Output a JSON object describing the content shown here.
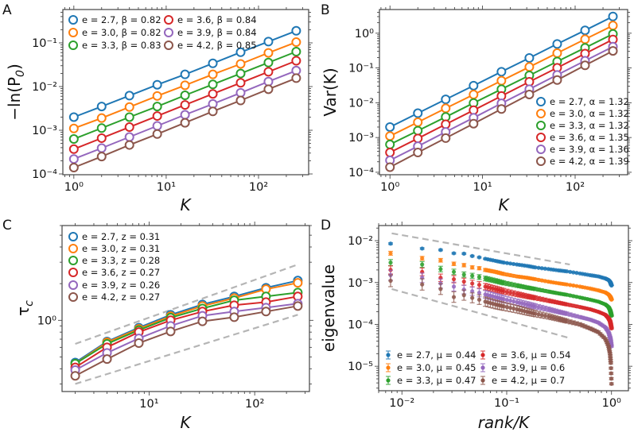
{
  "chart_data": [
    {
      "panel_label": "A",
      "type": "line",
      "scale": {
        "x": "log",
        "y": "log"
      },
      "xlabel": "K",
      "ylabel": {
        "text": "−ln(P",
        "sub": "0",
        "after": ")"
      },
      "xlim": [
        0.76,
        349
      ],
      "ylim": [
        9.6e-05,
        0.58
      ],
      "grid": false,
      "legend_placement": "top-left, 2 columns",
      "xticks": [
        {
          "value": 1,
          "label": "10⁰"
        },
        {
          "value": 10,
          "label": "10¹"
        },
        {
          "value": 100,
          "label": "10²"
        }
      ],
      "yticks": [
        {
          "value": 0.0001,
          "label": "10⁻⁴"
        },
        {
          "value": 0.001,
          "label": "10⁻³"
        },
        {
          "value": 0.01,
          "label": "10⁻²"
        },
        {
          "value": 0.1,
          "label": "10⁻¹"
        }
      ],
      "marker": "open-circle",
      "x": [
        1,
        2,
        4,
        8,
        16,
        32,
        64,
        128,
        256
      ],
      "series": [
        {
          "name": "e = 2.7, β = 0.82",
          "color": "#1f77b4",
          "values": [
            0.002,
            0.0035,
            0.0062,
            0.011,
            0.019,
            0.034,
            0.061,
            0.107,
            0.189
          ]
        },
        {
          "name": "e = 3.0, β = 0.82",
          "color": "#ff7f0e",
          "values": [
            0.0011,
            0.0019,
            0.0034,
            0.0061,
            0.0107,
            0.019,
            0.033,
            0.059,
            0.104
          ]
        },
        {
          "name": "e = 3.3, β = 0.83",
          "color": "#2ca02c",
          "values": [
            0.00063,
            0.00112,
            0.002,
            0.0035,
            0.0063,
            0.0112,
            0.0199,
            0.0354,
            0.063
          ]
        },
        {
          "name": "e = 3.6, β = 0.84",
          "color": "#d62728",
          "values": [
            0.00037,
            0.00066,
            0.00118,
            0.00212,
            0.0038,
            0.0068,
            0.0122,
            0.0218,
            0.039
          ]
        },
        {
          "name": "e = 3.9, β = 0.84",
          "color": "#9467bd",
          "values": [
            0.00022,
            0.00039,
            0.0007,
            0.00126,
            0.00226,
            0.004,
            0.0072,
            0.013,
            0.0232
          ]
        },
        {
          "name": "e = 4.2, β = 0.85",
          "color": "#8c564b",
          "values": [
            0.00014,
            0.00025,
            0.00046,
            0.00082,
            0.00148,
            0.0027,
            0.0048,
            0.0087,
            0.0156
          ]
        }
      ]
    },
    {
      "panel_label": "B",
      "type": "line",
      "scale": {
        "x": "log",
        "y": "log"
      },
      "xlabel": "K",
      "ylabel": {
        "text": "Var(K)"
      },
      "xlim": [
        0.77,
        369
      ],
      "ylim": [
        8.5e-05,
        4.8
      ],
      "grid": false,
      "legend_placement": "lower-right",
      "xticks": [
        {
          "value": 1,
          "label": "10⁰"
        },
        {
          "value": 10,
          "label": "10¹"
        },
        {
          "value": 100,
          "label": "10²"
        }
      ],
      "yticks": [
        {
          "value": 0.0001,
          "label": "10⁻⁴"
        },
        {
          "value": 0.001,
          "label": "10⁻³"
        },
        {
          "value": 0.01,
          "label": "10⁻²"
        },
        {
          "value": 0.1,
          "label": "10⁻¹"
        },
        {
          "value": 1,
          "label": "10⁰"
        }
      ],
      "marker": "open-circle",
      "x": [
        1,
        2,
        4,
        8,
        16,
        32,
        64,
        128,
        256
      ],
      "series": [
        {
          "name": "e = 2.7, α = 1.32",
          "color": "#1f77b4",
          "values": [
            0.002,
            0.005,
            0.0125,
            0.031,
            0.078,
            0.194,
            0.49,
            1.21,
            3.03
          ]
        },
        {
          "name": "e = 3.0, α = 1.32",
          "color": "#ff7f0e",
          "values": [
            0.0011,
            0.00275,
            0.0069,
            0.0172,
            0.043,
            0.107,
            0.267,
            0.67,
            1.66
          ]
        },
        {
          "name": "e = 3.3, α = 1.32",
          "color": "#2ca02c",
          "values": [
            0.00063,
            0.00157,
            0.0039,
            0.0098,
            0.0245,
            0.061,
            0.153,
            0.38,
            0.95
          ]
        },
        {
          "name": "e = 3.6, α = 1.35",
          "color": "#d62728",
          "values": [
            0.00037,
            0.00094,
            0.0024,
            0.0061,
            0.0156,
            0.04,
            0.101,
            0.259,
            0.66
          ]
        },
        {
          "name": "e = 3.9, α = 1.36",
          "color": "#9467bd",
          "values": [
            0.00022,
            0.00056,
            0.00145,
            0.0037,
            0.0096,
            0.0245,
            0.063,
            0.161,
            0.41
          ]
        },
        {
          "name": "e = 4.2, α = 1.39",
          "color": "#8c564b",
          "values": [
            0.00014,
            0.00037,
            0.00096,
            0.0025,
            0.0066,
            0.0173,
            0.045,
            0.119,
            0.31
          ]
        }
      ]
    },
    {
      "panel_label": "C",
      "type": "line",
      "scale": {
        "x": "log",
        "y": "log"
      },
      "xlabel": "K",
      "ylabel": {
        "text": "τ",
        "sub": "c"
      },
      "xlim": [
        1.5,
        330
      ],
      "ylim": [
        0.26,
        6.0
      ],
      "grid": false,
      "legend_placement": "top-left",
      "xticks": [
        {
          "value": 10,
          "label": "10¹"
        },
        {
          "value": 100,
          "label": "10²"
        }
      ],
      "yticks": [
        {
          "value": 1,
          "label": "10⁰"
        }
      ],
      "marker": "open-circle",
      "x": [
        2,
        4,
        8,
        16,
        32,
        64,
        128,
        256
      ],
      "series": [
        {
          "name": "e = 2.7, z = 0.31",
          "color": "#1f77b4",
          "values": [
            0.45,
            0.67,
            0.87,
            1.11,
            1.35,
            1.57,
            1.85,
            2.12
          ]
        },
        {
          "name": "e = 3.0, z = 0.31",
          "color": "#ff7f0e",
          "values": [
            0.44,
            0.66,
            0.85,
            1.08,
            1.31,
            1.52,
            1.8,
            2.03
          ]
        },
        {
          "name": "e = 3.3, z = 0.28",
          "color": "#2ca02c",
          "values": [
            0.44,
            0.64,
            0.83,
            1.05,
            1.25,
            1.46,
            1.57,
            1.69
          ]
        },
        {
          "name": "e = 3.6, z = 0.27",
          "color": "#d62728",
          "values": [
            0.41,
            0.6,
            0.8,
            1.0,
            1.18,
            1.33,
            1.41,
            1.57
          ]
        },
        {
          "name": "e = 3.9, z = 0.26",
          "color": "#9467bd",
          "values": [
            0.39,
            0.54,
            0.71,
            0.9,
            1.09,
            1.18,
            1.27,
            1.37
          ]
        },
        {
          "name": "e = 4.2, z = 0.27",
          "color": "#8c564b",
          "values": [
            0.35,
            0.48,
            0.65,
            0.81,
            0.98,
            1.06,
            1.18,
            1.31
          ]
        }
      ],
      "guides": [
        {
          "style": "dashed",
          "color": "#b5b5b5",
          "x": [
            2,
            256
          ],
          "y": [
            0.64,
            2.87
          ]
        },
        {
          "style": "dashed",
          "color": "#b5b5b5",
          "x": [
            2,
            256
          ],
          "y": [
            0.3,
            1.11
          ]
        }
      ]
    },
    {
      "panel_label": "D",
      "type": "scatter",
      "scale": {
        "x": "log",
        "y": "log"
      },
      "xlabel": "rank/K",
      "ylabel": {
        "text": "eigenvalue"
      },
      "xlim": [
        0.006,
        1.45
      ],
      "ylim": [
        2.6e-06,
        0.023
      ],
      "grid": false,
      "legend_placement": "lower-left, 2 columns",
      "xticks": [
        {
          "value": 0.01,
          "label": "10⁻²"
        },
        {
          "value": 0.1,
          "label": "10⁻¹"
        },
        {
          "value": 1,
          "label": "10⁰"
        }
      ],
      "yticks": [
        {
          "value": 1e-05,
          "label": "10⁻⁵"
        },
        {
          "value": 0.0001,
          "label": "10⁻⁴"
        },
        {
          "value": 0.001,
          "label": "10⁻³"
        },
        {
          "value": 0.01,
          "label": "10⁻²"
        }
      ],
      "marker": "filled-point-with-errorbar",
      "x": [
        0.0078,
        0.0156,
        0.0234,
        0.0313,
        0.0391,
        0.0469,
        0.0547,
        0.0625,
        0.0781,
        0.0938,
        0.125,
        0.1563,
        0.1875,
        0.25,
        0.3125,
        0.375,
        0.5,
        0.625,
        0.75,
        0.875,
        0.9375,
        0.9688,
        0.9844,
        1.0
      ],
      "series": [
        {
          "name": "e = 2.7, μ = 0.44",
          "color": "#1f77b4",
          "values": [
            0.0085,
            0.0065,
            0.006,
            0.005,
            0.0049,
            0.0043,
            0.004,
            0.0037,
            0.0033,
            0.003,
            0.0027,
            0.0025,
            0.0023,
            0.0021,
            0.00195,
            0.00185,
            0.00165,
            0.0015,
            0.0014,
            0.00125,
            0.00115,
            0.00105,
            0.00095,
            0.00085
          ]
        },
        {
          "name": "e = 3.0, μ = 0.45",
          "color": "#ff7f0e",
          "values": [
            0.005,
            0.0038,
            0.0034,
            0.0028,
            0.0026,
            0.0023,
            0.0022,
            0.002,
            0.0018,
            0.0016,
            0.0014,
            0.0013,
            0.0012,
            0.00105,
            0.00096,
            0.0009,
            0.0008,
            0.00072,
            0.00065,
            0.00058,
            0.00052,
            0.00047,
            0.00043,
            0.00039
          ]
        },
        {
          "name": "e = 3.3, μ = 0.47",
          "color": "#2ca02c",
          "values": [
            0.003,
            0.0027,
            0.0021,
            0.0018,
            0.00155,
            0.00145,
            0.00135,
            0.00125,
            0.0011,
            0.00098,
            0.00085,
            0.00076,
            0.0007,
            0.00061,
            0.00055,
            0.00051,
            0.00044,
            0.00039,
            0.00035,
            0.0003,
            0.00026,
            0.00022,
            0.00019,
            0.00016
          ]
        },
        {
          "name": "e = 3.6, μ = 0.54",
          "color": "#d62728",
          "values": [
            0.002,
            0.0018,
            0.0013,
            0.0012,
            0.00105,
            0.00095,
            0.00088,
            0.0008,
            0.0007,
            0.00062,
            0.00053,
            0.00047,
            0.00043,
            0.00037,
            0.00033,
            0.0003,
            0.00026,
            0.00023,
            0.0002,
            0.00017,
            0.00014,
            0.00012,
            0.0001,
            8e-05
          ]
        },
        {
          "name": "e = 3.9, μ = 0.6",
          "color": "#9467bd",
          "values": [
            0.0015,
            0.0013,
            0.00095,
            0.0008,
            0.00068,
            0.00062,
            0.00057,
            0.00052,
            0.00045,
            0.0004,
            0.00034,
            0.0003,
            0.00027,
            0.00023,
            0.0002,
            0.00018,
            0.00015,
            0.00013,
            0.00011,
            8.5e-05,
            6.5e-05,
            5e-05,
            4e-05,
            3e-05
          ]
        },
        {
          "name": "e = 4.2, μ = 0.7",
          "color": "#8c564b",
          "values": [
            0.0011,
            0.0009,
            0.0007,
            0.00045,
            0.0005,
            0.00043,
            0.00039,
            0.00035,
            0.0003,
            0.00027,
            0.00023,
            0.0002,
            0.00018,
            0.000155,
            0.000135,
            0.00012,
            0.0001,
            8e-05,
            6.5e-05,
            4.5e-05,
            3e-05,
            2e-05,
            1.2e-05,
            3.8e-06
          ]
        }
      ],
      "guides": [
        {
          "style": "dashed",
          "color": "#b5b5b5",
          "x": [
            0.008,
            0.4
          ],
          "y": [
            0.015,
            0.0027
          ]
        },
        {
          "style": "dashed",
          "color": "#b5b5b5",
          "x": [
            0.008,
            0.4
          ],
          "y": [
            0.0007,
            4.7e-05
          ]
        }
      ]
    }
  ]
}
